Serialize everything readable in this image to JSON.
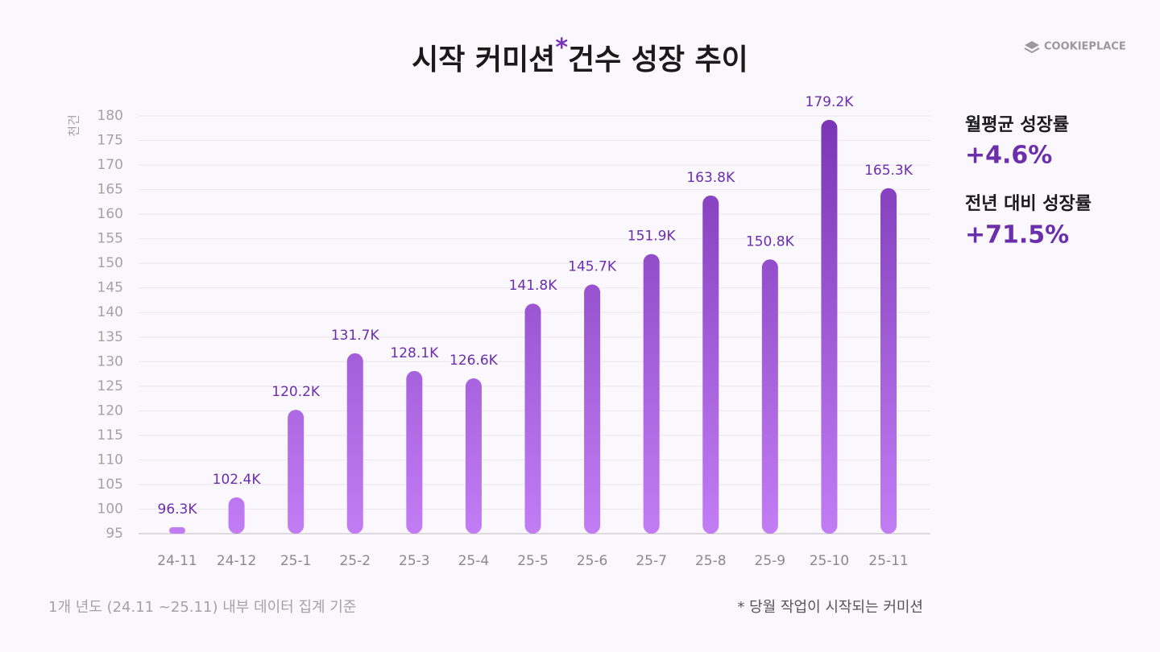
{
  "chart_data": {
    "type": "bar",
    "title": "시작 커미션",
    "title_mark": "*",
    "title_rest": "건수 성장 추이",
    "y_label": "천건",
    "categories": [
      "24-11",
      "24-12",
      "25-1",
      "25-2",
      "25-3",
      "25-4",
      "25-5",
      "25-6",
      "25-7",
      "25-8",
      "25-9",
      "25-10",
      "25-11"
    ],
    "values": [
      96.3,
      102.4,
      120.2,
      131.7,
      128.1,
      126.6,
      141.8,
      145.7,
      151.9,
      163.8,
      150.8,
      179.2,
      165.3
    ],
    "value_labels": [
      "96.3K",
      "102.4K",
      "120.2K",
      "131.7K",
      "128.1K",
      "126.6K",
      "141.8K",
      "145.7K",
      "151.9K",
      "163.8K",
      "150.8K",
      "179.2K",
      "165.3K"
    ],
    "color_top": "#7a35b5",
    "color_bottom": "#c27df5",
    "ylim": [
      95,
      180
    ],
    "yticks": [
      95,
      100,
      105,
      110,
      115,
      120,
      125,
      130,
      135,
      140,
      145,
      150,
      155,
      160,
      165,
      170,
      175,
      180
    ],
    "grid": true
  },
  "brand": "COOKIEPLACE",
  "stats": [
    {
      "label": "월평균 성장률",
      "value": "+4.6%"
    },
    {
      "label": "전년 대비 성장률",
      "value": "+71.5%"
    }
  ],
  "footnotes": {
    "left": "1개 년도 (24.11 ~25.11) 내부 데이터 집계 기준",
    "right": "* 당월 작업이 시작되는 커미션"
  }
}
